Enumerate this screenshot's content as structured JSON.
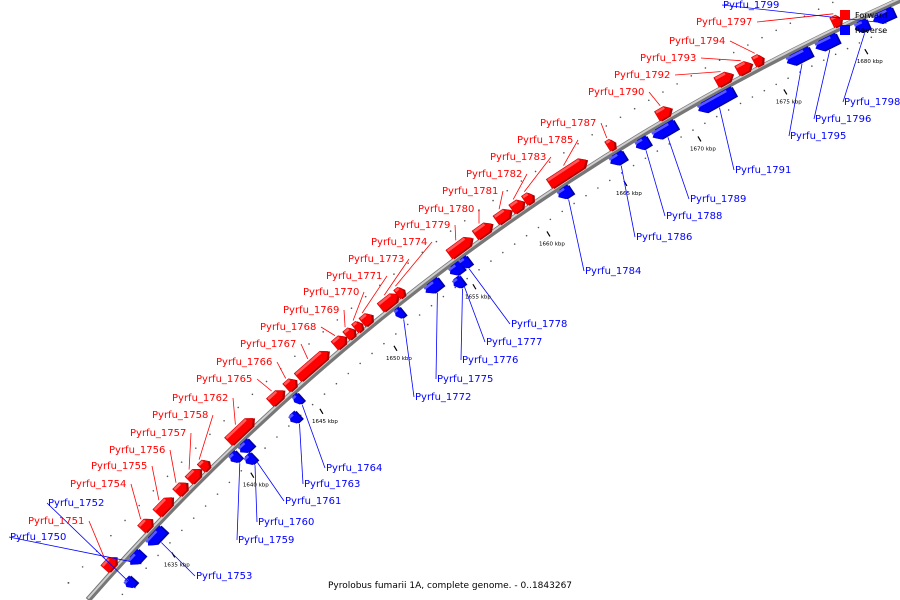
{
  "caption": "Pyrolobus fumarii 1A, complete genome. - 0..1843267",
  "legend": [
    {
      "label": "Forward",
      "color": "#ff0000"
    },
    {
      "label": "Reverse",
      "color": "#0000ff"
    }
  ],
  "colors": {
    "forward": "#ff0000",
    "reverse": "#0000ff",
    "backbone": "#999999"
  },
  "scale_marks": [
    "1635 kbp",
    "1640 kbp",
    "1645 kbp",
    "1650 kbp",
    "1655 kbp",
    "1660 kbp",
    "1665 kbp",
    "1670 kbp",
    "1675 kbp",
    "1680 kbp"
  ],
  "genes": [
    {
      "name": "Pyrfu_1750",
      "strand": "reverse"
    },
    {
      "name": "Pyrfu_1751",
      "strand": "forward"
    },
    {
      "name": "Pyrfu_1752",
      "strand": "reverse"
    },
    {
      "name": "Pyrfu_1753",
      "strand": "reverse"
    },
    {
      "name": "Pyrfu_1754",
      "strand": "forward"
    },
    {
      "name": "Pyrfu_1755",
      "strand": "forward"
    },
    {
      "name": "Pyrfu_1756",
      "strand": "forward"
    },
    {
      "name": "Pyrfu_1757",
      "strand": "forward"
    },
    {
      "name": "Pyrfu_1758",
      "strand": "forward"
    },
    {
      "name": "Pyrfu_1759",
      "strand": "reverse"
    },
    {
      "name": "Pyrfu_1760",
      "strand": "reverse"
    },
    {
      "name": "Pyrfu_1761",
      "strand": "reverse"
    },
    {
      "name": "Pyrfu_1762",
      "strand": "forward"
    },
    {
      "name": "Pyrfu_1763",
      "strand": "reverse"
    },
    {
      "name": "Pyrfu_1764",
      "strand": "reverse"
    },
    {
      "name": "Pyrfu_1765",
      "strand": "forward"
    },
    {
      "name": "Pyrfu_1766",
      "strand": "forward"
    },
    {
      "name": "Pyrfu_1767",
      "strand": "forward"
    },
    {
      "name": "Pyrfu_1768",
      "strand": "forward"
    },
    {
      "name": "Pyrfu_1769",
      "strand": "forward"
    },
    {
      "name": "Pyrfu_1770",
      "strand": "forward"
    },
    {
      "name": "Pyrfu_1771",
      "strand": "forward"
    },
    {
      "name": "Pyrfu_1772",
      "strand": "reverse"
    },
    {
      "name": "Pyrfu_1773",
      "strand": "forward"
    },
    {
      "name": "Pyrfu_1774",
      "strand": "forward"
    },
    {
      "name": "Pyrfu_1775",
      "strand": "reverse"
    },
    {
      "name": "Pyrfu_1776",
      "strand": "reverse"
    },
    {
      "name": "Pyrfu_1777",
      "strand": "reverse"
    },
    {
      "name": "Pyrfu_1778",
      "strand": "reverse"
    },
    {
      "name": "Pyrfu_1779",
      "strand": "forward"
    },
    {
      "name": "Pyrfu_1780",
      "strand": "forward"
    },
    {
      "name": "Pyrfu_1781",
      "strand": "forward"
    },
    {
      "name": "Pyrfu_1782",
      "strand": "forward"
    },
    {
      "name": "Pyrfu_1783",
      "strand": "forward"
    },
    {
      "name": "Pyrfu_1784",
      "strand": "reverse"
    },
    {
      "name": "Pyrfu_1785",
      "strand": "forward"
    },
    {
      "name": "Pyrfu_1786",
      "strand": "reverse"
    },
    {
      "name": "Pyrfu_1787",
      "strand": "forward"
    },
    {
      "name": "Pyrfu_1788",
      "strand": "reverse"
    },
    {
      "name": "Pyrfu_1789",
      "strand": "reverse"
    },
    {
      "name": "Pyrfu_1790",
      "strand": "forward"
    },
    {
      "name": "Pyrfu_1791",
      "strand": "reverse"
    },
    {
      "name": "Pyrfu_1792",
      "strand": "forward"
    },
    {
      "name": "Pyrfu_1793",
      "strand": "forward"
    },
    {
      "name": "Pyrfu_1794",
      "strand": "forward"
    },
    {
      "name": "Pyrfu_1795",
      "strand": "reverse"
    },
    {
      "name": "Pyrfu_1796",
      "strand": "reverse"
    },
    {
      "name": "Pyrfu_1797",
      "strand": "forward"
    },
    {
      "name": "Pyrfu_1798",
      "strand": "reverse"
    },
    {
      "name": "Pyrfu_1799",
      "strand": "reverse"
    }
  ]
}
